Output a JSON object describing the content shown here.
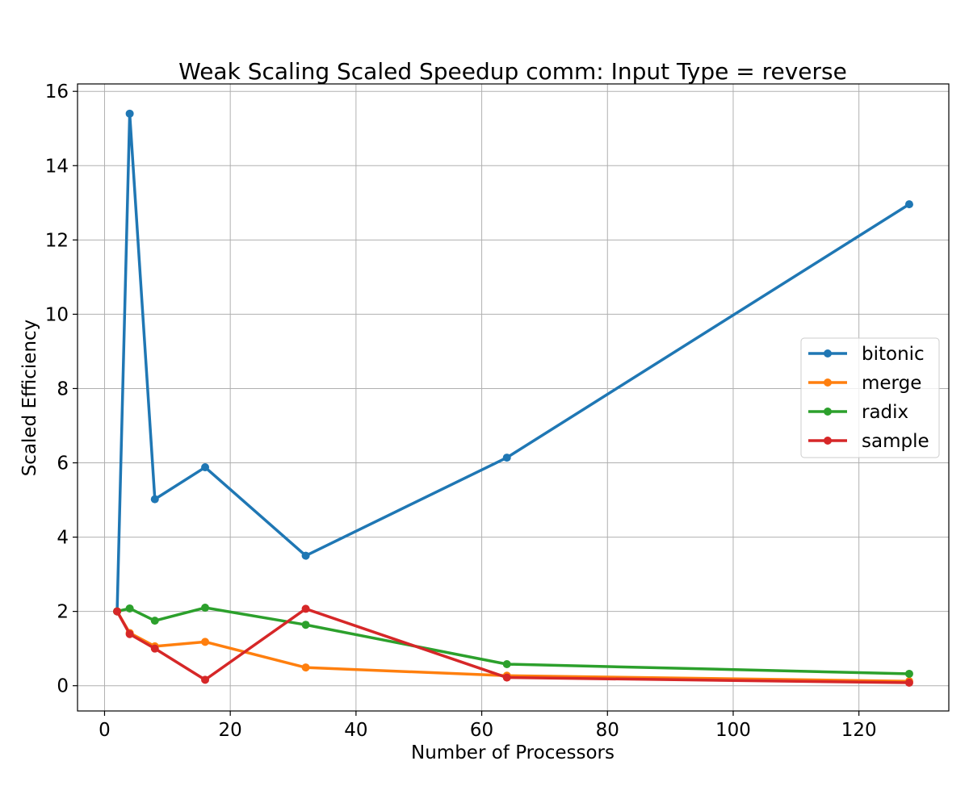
{
  "chart_data": {
    "type": "line",
    "title": "Weak Scaling Scaled Speedup comm: Input Type = reverse",
    "xlabel": "Number of Processors",
    "ylabel": "Scaled Efficiency",
    "x": [
      2,
      4,
      8,
      16,
      32,
      64,
      128
    ],
    "xlim": [
      -4.3,
      134.3
    ],
    "ylim": [
      -0.68,
      16.2
    ],
    "xticks": [
      0,
      20,
      40,
      60,
      80,
      100,
      120
    ],
    "yticks": [
      0,
      2,
      4,
      6,
      8,
      10,
      12,
      14,
      16
    ],
    "grid": true,
    "legend_position": "center-right",
    "series": [
      {
        "name": "bitonic",
        "color": "#1f77b4",
        "values": [
          2.0,
          15.4,
          5.02,
          5.88,
          3.5,
          6.14,
          12.96
        ]
      },
      {
        "name": "merge",
        "color": "#ff7f0e",
        "values": [
          2.0,
          1.42,
          1.06,
          1.18,
          0.49,
          0.27,
          0.12
        ]
      },
      {
        "name": "radix",
        "color": "#2ca02c",
        "values": [
          2.0,
          2.08,
          1.75,
          2.1,
          1.64,
          0.58,
          0.32
        ]
      },
      {
        "name": "sample",
        "color": "#d62728",
        "values": [
          2.0,
          1.39,
          1.0,
          0.16,
          2.07,
          0.22,
          0.08
        ]
      }
    ]
  }
}
